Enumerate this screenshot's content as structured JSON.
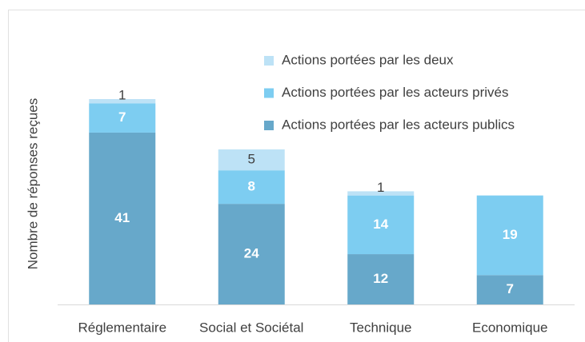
{
  "chart_data": {
    "type": "stacked_bar",
    "y_label": "Nombre de réponses reçues",
    "categories": [
      "Réglementaire",
      "Social et Sociétal",
      "Technique",
      "Economique"
    ],
    "series": [
      {
        "name": "Actions portées par les acteurs publics",
        "color": "#67a8ca",
        "values": [
          41,
          24,
          12,
          7
        ]
      },
      {
        "name": "Actions portées par les acteurs privés",
        "color": "#7dcdf1",
        "values": [
          7,
          8,
          14,
          19
        ]
      },
      {
        "name": "Actions portées par les deux",
        "color": "#bde2f6",
        "values": [
          1,
          5,
          1,
          null
        ]
      }
    ]
  }
}
